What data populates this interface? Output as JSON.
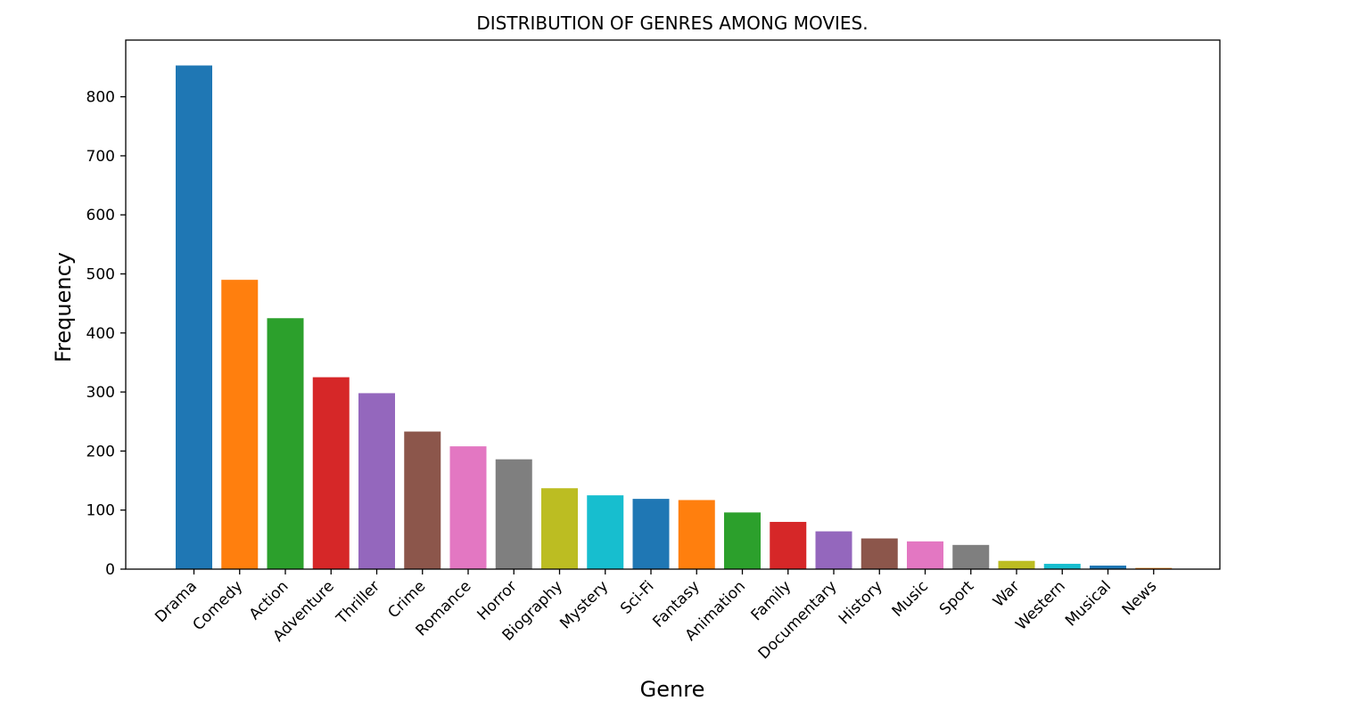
{
  "chart_data": {
    "type": "bar",
    "title": "DISTRIBUTION OF GENRES AMONG MOVIES.",
    "xlabel": "Genre",
    "ylabel": "Frequency",
    "categories": [
      "Drama",
      "Comedy",
      "Action",
      "Adventure",
      "Thriller",
      "Crime",
      "Romance",
      "Horror",
      "Biography",
      "Mystery",
      "Sci-Fi",
      "Fantasy",
      "Animation",
      "Family",
      "Documentary",
      "History",
      "Music",
      "Sport",
      "War",
      "Western",
      "Musical",
      "News"
    ],
    "values": [
      853,
      490,
      425,
      325,
      298,
      233,
      208,
      186,
      137,
      125,
      119,
      117,
      96,
      80,
      64,
      52,
      47,
      41,
      14,
      9,
      6,
      2
    ],
    "colors": [
      "#1f77b4",
      "#ff7f0e",
      "#2ca02c",
      "#d62728",
      "#9467bd",
      "#8c564b",
      "#e377c2",
      "#7f7f7f",
      "#bcbd22",
      "#17becf",
      "#1f77b4",
      "#ff7f0e",
      "#2ca02c",
      "#d62728",
      "#9467bd",
      "#8c564b",
      "#e377c2",
      "#7f7f7f",
      "#bcbd22",
      "#17becf",
      "#1f77b4",
      "#ff7f0e"
    ],
    "yticks": [
      0,
      100,
      200,
      300,
      400,
      500,
      600,
      700,
      800
    ],
    "ylim": [
      0,
      896
    ],
    "grid": false,
    "legend": "none"
  }
}
